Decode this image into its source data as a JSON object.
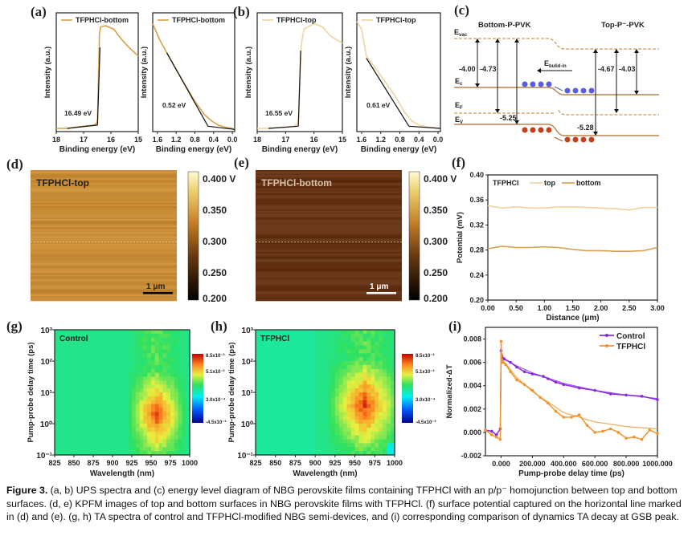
{
  "figure": {
    "panel_labels": [
      "(a)",
      "(b)",
      "(c)",
      "(d)",
      "(e)",
      "(f)",
      "(g)",
      "(h)",
      "(i)"
    ],
    "caption_label": "Figure 3.",
    "caption_text": " (a, b) UPS spectra and (c) energy level diagram of NBG perovskite films containing TFPHCl with an p/p⁻ homojunction between top and bottom surfaces. (d, e) KPFM images of top and bottom surfaces in NBG perovskite films with TFPHCl. (f) surface potential captured on the horizontal line marked in (d) and (e). (g, h) TA spectra of control and TFPHCl-modified NBG semi-devices, and (i) corresponding comparison of dynamics TA decay at GSB peak."
  },
  "colors": {
    "bottom": "#d9a24a",
    "top": "#f0d3a0",
    "fit": "#111111",
    "control": "#8a2be2",
    "tfphcl": "#f0952c"
  },
  "energy_diagram": {
    "left_title": "Bottom-P-PVK",
    "right_title": "Top-P⁻-PVK",
    "levels": {
      "vac": "E",
      "vac_sub": "vac",
      "c": "E",
      "c_sub": "c",
      "f": "E",
      "f_sub": "F",
      "v": "E",
      "v_sub": "V"
    },
    "field": "E",
    "field_sub": "bulid-in",
    "values": [
      "-4.00",
      "-4.73",
      "-5.25",
      "-4.67",
      "-4.03",
      "-5.28"
    ]
  },
  "kpfm": [
    {
      "title": "TFPHCl-top",
      "scale": "1 μm",
      "colorbar": [
        "0.400 V",
        "0.350",
        "0.300",
        "0.250",
        "0.200"
      ]
    },
    {
      "title": "TFPHCl-bottom",
      "scale": "1 μm",
      "colorbar": [
        "0.400 V",
        "0.350",
        "0.300",
        "0.250",
        "0.200"
      ]
    }
  ],
  "chart_data": [
    {
      "id": "a1",
      "type": "line",
      "legend": "TFPHCl-bottom",
      "xlabel": "Binding energy (eV)",
      "ylabel": "Intensity (a.u.)",
      "xlim": [
        18,
        15
      ],
      "ylim": [
        0,
        1.1
      ],
      "xticks": [
        18,
        17,
        16,
        15
      ],
      "annotation": "16.49 eV",
      "series": [
        {
          "name": "TFPHCl-bottom",
          "x": [
            18,
            17.6,
            17.0,
            16.6,
            16.52,
            16.49,
            16.42,
            16.38,
            16.2,
            15.9,
            15.6,
            15.3,
            15.0
          ],
          "y": [
            0.03,
            0.03,
            0.05,
            0.06,
            0.08,
            0.1,
            0.9,
            0.97,
            0.98,
            0.95,
            0.85,
            0.77,
            0.7
          ]
        }
      ],
      "fits": [
        {
          "x": [
            17.6,
            16.49
          ],
          "y": [
            0.03,
            0.06
          ]
        },
        {
          "x": [
            16.49,
            16.4
          ],
          "y": [
            0.06,
            0.78
          ]
        }
      ]
    },
    {
      "id": "a2",
      "type": "line",
      "legend": "TFPHCl-bottom",
      "xlabel": "Binding energy (eV)",
      "ylabel": "Intensity (a.u.)",
      "xlim": [
        1.7,
        -0.05
      ],
      "ylim": [
        0,
        1.1
      ],
      "xticks": [
        1.6,
        1.2,
        0.8,
        0.4,
        0.0
      ],
      "annotation": "0.52 eV",
      "series": [
        {
          "name": "TFPHCl-bottom",
          "x": [
            1.7,
            1.55,
            1.4,
            1.1,
            0.8,
            0.6,
            0.45,
            0.3,
            0.15,
            0.0,
            -0.05
          ],
          "y": [
            1.0,
            0.85,
            0.73,
            0.5,
            0.28,
            0.16,
            0.1,
            0.06,
            0.04,
            0.03,
            0.02
          ]
        }
      ],
      "fits": [
        {
          "x": [
            1.4,
            0.52
          ],
          "y": [
            0.73,
            0.05
          ]
        },
        {
          "x": [
            0.52,
            -0.05
          ],
          "y": [
            0.05,
            0.02
          ]
        }
      ]
    },
    {
      "id": "b1",
      "type": "line",
      "legend": "TFPHCl-top",
      "xlabel": "Binding energy (eV)",
      "ylabel": "Intensity (a.u.)",
      "xlim": [
        18,
        15
      ],
      "ylim": [
        0,
        1.1
      ],
      "xticks": [
        18,
        17,
        16,
        15
      ],
      "annotation": "16.55 eV",
      "series": [
        {
          "name": "TFPHCl-top",
          "x": [
            18,
            17.6,
            17.0,
            16.7,
            16.58,
            16.55,
            16.45,
            16.35,
            16.0,
            15.7,
            15.4,
            15.0
          ],
          "y": [
            0.03,
            0.03,
            0.04,
            0.05,
            0.07,
            0.1,
            0.8,
            0.95,
            1.0,
            0.97,
            0.88,
            0.82
          ]
        }
      ],
      "fits": [
        {
          "x": [
            17.6,
            16.55
          ],
          "y": [
            0.03,
            0.05
          ]
        },
        {
          "x": [
            16.55,
            16.47
          ],
          "y": [
            0.05,
            0.75
          ]
        }
      ]
    },
    {
      "id": "b2",
      "type": "line",
      "legend": "TFPHCl-top",
      "xlabel": "Binding energy (eV)",
      "ylabel": "Intensity (a.u.)",
      "xlim": [
        1.7,
        -0.05
      ],
      "ylim": [
        0,
        1.1
      ],
      "xticks": [
        1.6,
        1.2,
        0.8,
        0.4,
        0.0
      ],
      "annotation": "0.61 eV",
      "series": [
        {
          "name": "TFPHCl-top",
          "x": [
            1.7,
            1.6,
            1.5,
            1.2,
            0.9,
            0.7,
            0.55,
            0.4,
            0.2,
            0.0,
            -0.05
          ],
          "y": [
            1.02,
            0.95,
            0.7,
            0.52,
            0.33,
            0.18,
            0.1,
            0.06,
            0.04,
            0.03,
            0.03
          ]
        }
      ],
      "fits": [
        {
          "x": [
            1.5,
            0.61
          ],
          "y": [
            0.68,
            0.05
          ]
        },
        {
          "x": [
            0.61,
            -0.05
          ],
          "y": [
            0.05,
            0.03
          ]
        }
      ]
    },
    {
      "id": "f",
      "type": "line",
      "title_label": "TFPHCl",
      "xlabel": "Distance (μm)",
      "ylabel": "Potential (mV)",
      "xlim": [
        0,
        3
      ],
      "ylim": [
        0.2,
        0.4
      ],
      "xticks": [
        0.0,
        0.5,
        1.0,
        1.5,
        2.0,
        2.5,
        3.0
      ],
      "yticks": [
        0.2,
        0.24,
        0.28,
        0.32,
        0.36,
        0.4
      ],
      "legend_position": "top-left",
      "series": [
        {
          "name": "top",
          "x": [
            0,
            0.25,
            0.5,
            0.75,
            1.0,
            1.25,
            1.5,
            1.75,
            2.0,
            2.25,
            2.5,
            2.75,
            3.0
          ],
          "y": [
            0.351,
            0.347,
            0.349,
            0.347,
            0.347,
            0.349,
            0.349,
            0.348,
            0.347,
            0.346,
            0.344,
            0.348,
            0.348
          ]
        },
        {
          "name": "bottom",
          "x": [
            0,
            0.25,
            0.5,
            0.75,
            1.0,
            1.25,
            1.5,
            1.75,
            2.0,
            2.25,
            2.5,
            2.75,
            3.0
          ],
          "y": [
            0.282,
            0.286,
            0.284,
            0.284,
            0.285,
            0.284,
            0.281,
            0.279,
            0.279,
            0.278,
            0.278,
            0.279,
            0.284
          ]
        }
      ]
    },
    {
      "id": "i",
      "type": "line",
      "xlabel": "Pump-probe delay time (ps)",
      "ylabel": "Normalized-ΔT",
      "xlim": [
        -100,
        1000
      ],
      "ylim": [
        -0.002,
        0.009
      ],
      "xticks": [
        0,
        200,
        400,
        600,
        800,
        1000
      ],
      "yticks": [
        -0.002,
        0.0,
        0.002,
        0.004,
        0.006,
        0.008
      ],
      "legend_position": "top-right",
      "series": [
        {
          "name": "Control",
          "x": [
            -100,
            -60,
            -30,
            -5,
            0,
            5,
            20,
            60,
            100,
            150,
            200,
            270,
            300,
            350,
            400,
            500,
            600,
            700,
            800,
            900,
            1000
          ],
          "y": [
            0.0002,
            0.0001,
            -0.0002,
            0.0003,
            0.007,
            0.0066,
            0.0063,
            0.006,
            0.0056,
            0.0052,
            0.005,
            0.0048,
            0.0046,
            0.0043,
            0.0041,
            0.0038,
            0.0036,
            0.0033,
            0.0032,
            0.0031,
            0.0028
          ]
        },
        {
          "name": "TFPHCl",
          "x": [
            -100,
            -60,
            -30,
            -5,
            0,
            3,
            10,
            30,
            60,
            100,
            150,
            200,
            250,
            300,
            350,
            400,
            450,
            500,
            550,
            600,
            650,
            700,
            750,
            800,
            850,
            900,
            950,
            1000
          ],
          "y": [
            0.0002,
            -0.0002,
            -0.0004,
            -0.0006,
            0.0078,
            0.0066,
            0.006,
            0.0058,
            0.0052,
            0.0045,
            0.0041,
            0.0036,
            0.003,
            0.0025,
            0.0018,
            0.0013,
            0.0013,
            0.0015,
            0.0006,
            0.0,
            0.0001,
            0.0003,
            0.0,
            -0.0005,
            -0.0004,
            -0.0006,
            0.0002,
            -0.0001
          ]
        }
      ],
      "fits": [
        {
          "series": "Control",
          "x": [
            0,
            100,
            200,
            400,
            600,
            800,
            1000
          ],
          "y": [
            0.0064,
            0.0057,
            0.0051,
            0.0042,
            0.0036,
            0.0032,
            0.0029
          ]
        },
        {
          "series": "TFPHCl",
          "x": [
            0,
            100,
            200,
            400,
            600,
            800,
            1000
          ],
          "y": [
            0.0064,
            0.0047,
            0.0035,
            0.0017,
            0.0009,
            0.0005,
            0.0003
          ]
        }
      ]
    },
    {
      "id": "g",
      "type": "heatmap",
      "label": "Control",
      "xlabel": "Wavelength (nm)",
      "ylabel": "Pump-probe delay time (ps)",
      "xlim": [
        825,
        1000
      ],
      "ylim": [
        0.1,
        1000
      ],
      "yscale": "log",
      "xticks": [
        825,
        850,
        875,
        900,
        925,
        950,
        975,
        1000
      ],
      "yticks": [
        "10⁻¹",
        "10⁰",
        "10¹",
        "10²",
        "10³"
      ],
      "colorbar": [
        "8.5x10⁻³",
        "5.1x10⁻³",
        "3.0x10⁻⁴",
        "-4.5x10⁻³"
      ],
      "peak_nm": [
        930,
        985
      ]
    },
    {
      "id": "h",
      "type": "heatmap",
      "label": "TFPHCl",
      "xlabel": "Wavelength (nm)",
      "ylabel": "Pump-probe delay time (ps)",
      "xlim": [
        825,
        1000
      ],
      "ylim": [
        0.1,
        1000
      ],
      "yscale": "log",
      "xticks": [
        825,
        850,
        875,
        900,
        925,
        950,
        975,
        1000
      ],
      "yticks": [
        "10⁻¹",
        "10⁰",
        "10¹",
        "10²",
        "10³"
      ],
      "colorbar": [
        "8.5x10⁻³",
        "5.1x10⁻³",
        "3.0x10⁻⁴",
        "-4.5x10⁻³"
      ],
      "peak_nm": [
        925,
        1000
      ]
    }
  ]
}
